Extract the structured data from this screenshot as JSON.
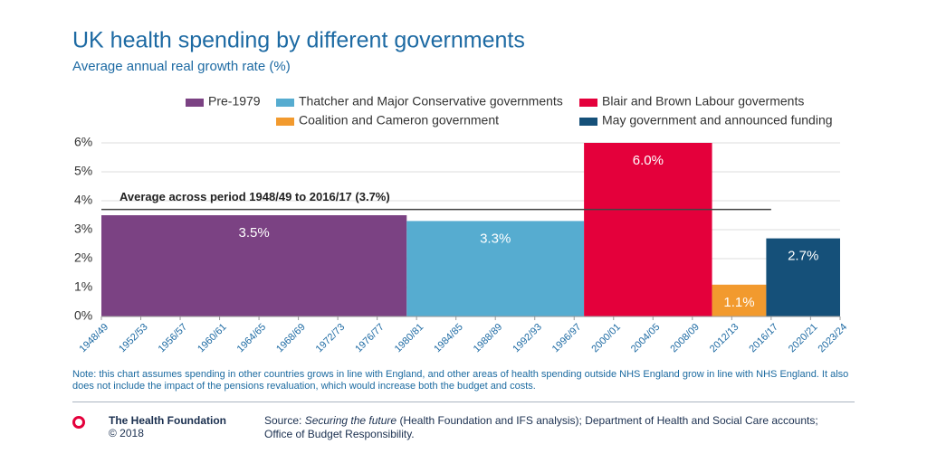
{
  "chart_data": {
    "type": "period-bar",
    "title": "UK health spending by different governments",
    "subtitle": "Average annual real growth rate (%)",
    "xlim": [
      1948,
      2023
    ],
    "xticks": [
      {
        "value": 1948,
        "label": "1948/49"
      },
      {
        "value": 1952,
        "label": "1952/53"
      },
      {
        "value": 1956,
        "label": "1956/57"
      },
      {
        "value": 1960,
        "label": "1960/61"
      },
      {
        "value": 1964,
        "label": "1964/65"
      },
      {
        "value": 1968,
        "label": "1968/69"
      },
      {
        "value": 1972,
        "label": "1972/73"
      },
      {
        "value": 1976,
        "label": "1976/77"
      },
      {
        "value": 1980,
        "label": "1980/81"
      },
      {
        "value": 1984,
        "label": "1984/85"
      },
      {
        "value": 1988,
        "label": "1988/89"
      },
      {
        "value": 1992,
        "label": "1992/93"
      },
      {
        "value": 1996,
        "label": "1996/97"
      },
      {
        "value": 2000,
        "label": "2000/01"
      },
      {
        "value": 2004,
        "label": "2004/05"
      },
      {
        "value": 2008,
        "label": "2008/09"
      },
      {
        "value": 2012,
        "label": "2012/13"
      },
      {
        "value": 2016,
        "label": "2016/17"
      },
      {
        "value": 2020,
        "label": "2020/21"
      },
      {
        "value": 2023,
        "label": "2023/24"
      }
    ],
    "ylim": [
      0,
      6
    ],
    "yticks": [
      {
        "value": 0,
        "label": "0%"
      },
      {
        "value": 1,
        "label": "1%"
      },
      {
        "value": 2,
        "label": "2%"
      },
      {
        "value": 3,
        "label": "3%"
      },
      {
        "value": 4,
        "label": "4%"
      },
      {
        "value": 5,
        "label": "5%"
      },
      {
        "value": 6,
        "label": "6%"
      }
    ],
    "grid": true,
    "series": [
      {
        "name": "Pre-1979",
        "color": "#7b4283",
        "span": [
          1948,
          1979
        ],
        "values": [
          3.5
        ],
        "value_labels": [
          "3.5%"
        ]
      },
      {
        "name": "Thatcher and Major Conservative governments",
        "color": "#56acd0",
        "span": [
          1979,
          1997
        ],
        "values": [
          3.3
        ],
        "value_labels": [
          "3.3%"
        ]
      },
      {
        "name": "Blair and Brown Labour goverments",
        "color": "#e4003b",
        "span": [
          1997,
          2010
        ],
        "values": [
          6.0
        ],
        "value_labels": [
          "6.0%"
        ]
      },
      {
        "name": "Coalition and Cameron government",
        "color": "#f29a2e",
        "span": [
          2010,
          2015.5
        ],
        "values": [
          1.1
        ],
        "value_labels": [
          "1.1%"
        ]
      },
      {
        "name": "May government and announced funding",
        "color": "#155079",
        "span": [
          2015.5,
          2023
        ],
        "values": [
          2.7
        ],
        "value_labels": [
          "2.7%"
        ]
      }
    ],
    "reference_line": {
      "value": 3.7,
      "span": [
        1948,
        2016
      ],
      "label": "Average across period 1948/49 to 2016/17 (3.7%)"
    }
  },
  "note": "Note: this chart assumes spending in other countries grows in line with England, and other areas of health spending outside NHS England grow in line with NHS England. It also does not include the impact of the pensions revaluation, which would increase both the budget and costs.",
  "footer": {
    "organisation": "The Health Foundation",
    "copyright": "© 2018",
    "source": [
      "Source: ",
      "Securing the future",
      " (Health Foundation and IFS analysis); Department of Health and Social Care accounts; Office of Budget Responsibility."
    ]
  }
}
